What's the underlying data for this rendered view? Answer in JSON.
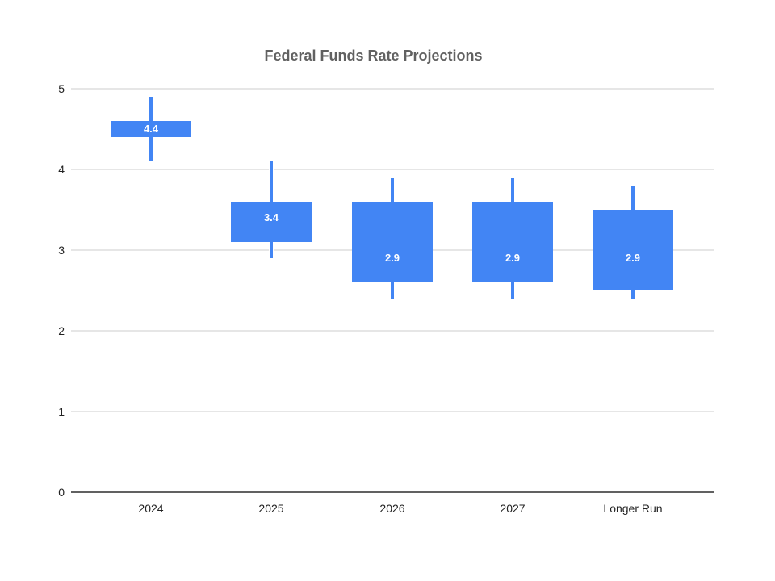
{
  "chart_data": {
    "type": "candlestick",
    "title": "Federal Funds Rate Projections",
    "xlabel": "",
    "ylabel": "",
    "categories": [
      "2024",
      "2025",
      "2026",
      "2027",
      "Longer Run"
    ],
    "points": [
      {
        "category": "2024",
        "median": 4.4,
        "box_low": 4.4,
        "box_high": 4.6,
        "whisker_low": 4.1,
        "whisker_high": 4.9,
        "data_label": "4.4"
      },
      {
        "category": "2025",
        "median": 3.4,
        "box_low": 3.1,
        "box_high": 3.6,
        "whisker_low": 2.9,
        "whisker_high": 4.1,
        "data_label": "3.4"
      },
      {
        "category": "2026",
        "median": 2.9,
        "box_low": 2.6,
        "box_high": 3.6,
        "whisker_low": 2.4,
        "whisker_high": 3.9,
        "data_label": "2.9"
      },
      {
        "category": "2027",
        "median": 2.9,
        "box_low": 2.6,
        "box_high": 3.6,
        "whisker_low": 2.4,
        "whisker_high": 3.9,
        "data_label": "2.9"
      },
      {
        "category": "Longer Run",
        "median": 2.9,
        "box_low": 2.5,
        "box_high": 3.5,
        "whisker_low": 2.4,
        "whisker_high": 3.8,
        "data_label": "2.9"
      }
    ],
    "y_ticks": [
      "0",
      "1",
      "2",
      "3",
      "4",
      "5"
    ],
    "ylim": [
      0,
      5
    ],
    "grid": true,
    "legend": "none",
    "colors": {
      "box_fill": "#4285F4",
      "whisker": "#4285F4",
      "data_label_text": "#ffffff",
      "title_text": "#616161",
      "axis_label_text": "#222222",
      "gridline": "#e6e6e6",
      "baseline": "#616161",
      "background": "#ffffff"
    }
  }
}
